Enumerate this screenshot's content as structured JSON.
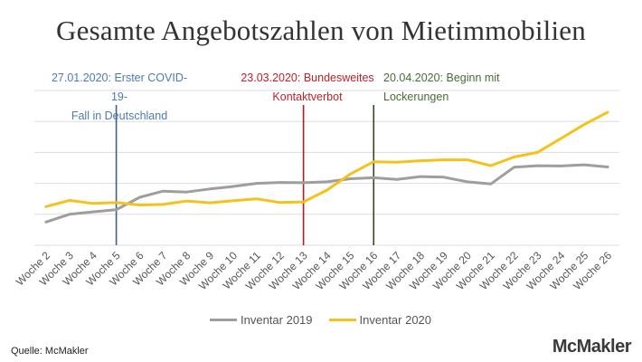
{
  "colors": {
    "series_2019": "#9e9e9e",
    "series_2020": "#f5c21b",
    "marker_blue": "#3f5f86",
    "marker_red": "#b01c24",
    "marker_green": "#2f4a20",
    "grid": "#dddddd"
  },
  "chart_data": {
    "type": "line",
    "title": "Gesamte Angebotszahlen von Mietimmobilien",
    "grid": true,
    "legend_position": "bottom",
    "ylim": [
      0,
      5
    ],
    "categories": [
      "Woche 2",
      "Woche 3",
      "Woche 4",
      "Woche 5",
      "Woche 6",
      "Woche 7",
      "Woche 8",
      "Woche 9",
      "Woche 10",
      "Woche 11",
      "Woche 12",
      "Woche 13",
      "Woche 14",
      "Woche 15",
      "Woche 16",
      "Woche 17",
      "Woche 18",
      "Woche 19",
      "Woche 20",
      "Woche 21",
      "Woche 22",
      "Woche 23",
      "Woche 24",
      "Woche 25",
      "Woche 26"
    ],
    "series": [
      {
        "name": "Inventar 2019",
        "values": [
          0.75,
          1.0,
          1.08,
          1.15,
          1.55,
          1.75,
          1.72,
          1.82,
          1.9,
          2.0,
          2.03,
          2.02,
          2.05,
          2.15,
          2.18,
          2.13,
          2.22,
          2.2,
          2.05,
          1.98,
          2.52,
          2.57,
          2.56,
          2.6,
          2.53
        ]
      },
      {
        "name": "Inventar 2020",
        "values": [
          1.25,
          1.45,
          1.35,
          1.38,
          1.3,
          1.32,
          1.43,
          1.37,
          1.44,
          1.5,
          1.38,
          1.4,
          1.78,
          2.3,
          2.7,
          2.68,
          2.73,
          2.76,
          2.76,
          2.57,
          2.85,
          3.0,
          3.45,
          3.9,
          4.3
        ]
      }
    ],
    "markers": [
      {
        "after_category": "Woche 5",
        "color_key": "marker_blue",
        "lines": [
          "27.01.2020: Erster COVID-19-",
          "Fall in Deutschland"
        ]
      },
      {
        "after_category": "Woche 13",
        "color_key": "marker_red",
        "lines": [
          "23.03.2020: Bundesweites",
          "Kontaktverbot"
        ]
      },
      {
        "after_category": "Woche 16",
        "color_key": "marker_green",
        "lines": [
          "20.04.2020: Beginn mit",
          "Lockerungen"
        ]
      }
    ]
  },
  "source": "Quelle: McMakler",
  "brand": "McMakler"
}
